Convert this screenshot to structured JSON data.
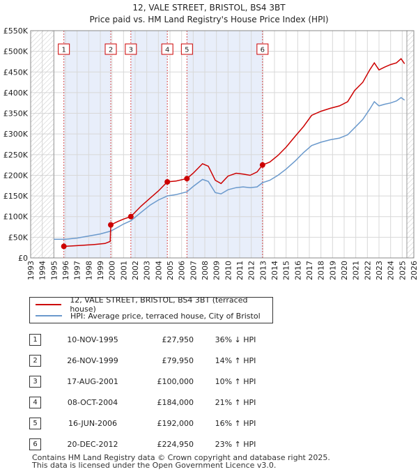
{
  "title_line1": "12, VALE STREET, BRISTOL, BS4 3BT",
  "title_line2": "Price paid vs. HM Land Registry's House Price Index (HPI)",
  "colors": {
    "property": "#cc0000",
    "hpi": "#6a99cc",
    "shade": "#e8eefa",
    "vline": "#cc0000"
  },
  "chart_data": {
    "type": "line",
    "x_range": [
      1993,
      2026
    ],
    "y_range": [
      0,
      550000
    ],
    "y_ticks": [
      0,
      50000,
      100000,
      150000,
      200000,
      250000,
      300000,
      350000,
      400000,
      450000,
      500000,
      550000
    ],
    "y_tick_labels": [
      "£0",
      "£50K",
      "£100K",
      "£150K",
      "£200K",
      "£250K",
      "£300K",
      "£350K",
      "£400K",
      "£450K",
      "£500K",
      "£550K"
    ],
    "x_ticks": [
      1993,
      1994,
      1995,
      1996,
      1997,
      1998,
      1999,
      2000,
      2001,
      2002,
      2003,
      2004,
      2005,
      2006,
      2007,
      2008,
      2009,
      2010,
      2011,
      2012,
      2013,
      2014,
      2015,
      2016,
      2017,
      2018,
      2019,
      2020,
      2021,
      2022,
      2023,
      2024,
      2025,
      2026
    ],
    "data_start": 1995,
    "data_end": 2025.4,
    "shaded_periods": [
      [
        1995.86,
        1999.9
      ],
      [
        2001.63,
        2004.77
      ],
      [
        2006.46,
        2012.97
      ]
    ],
    "series": [
      {
        "name": "12, VALE STREET, BRISTOL, BS4 3BT (terraced house)",
        "points": [
          [
            1995.86,
            27950
          ],
          [
            1996.5,
            28800
          ],
          [
            1997.5,
            30500
          ],
          [
            1998.5,
            32500
          ],
          [
            1999.4,
            35000
          ],
          [
            1999.85,
            40000
          ],
          [
            1999.9,
            79950
          ],
          [
            2000.5,
            88000
          ],
          [
            2001.0,
            94000
          ],
          [
            2001.63,
            100000
          ],
          [
            2002.5,
            125000
          ],
          [
            2003.3,
            145000
          ],
          [
            2004.0,
            162000
          ],
          [
            2004.77,
            184000
          ],
          [
            2005.5,
            186000
          ],
          [
            2006.46,
            192000
          ],
          [
            2007.0,
            205000
          ],
          [
            2007.8,
            228000
          ],
          [
            2008.3,
            222000
          ],
          [
            2008.9,
            188000
          ],
          [
            2009.4,
            180000
          ],
          [
            2010.0,
            198000
          ],
          [
            2010.7,
            205000
          ],
          [
            2011.3,
            203000
          ],
          [
            2011.9,
            200000
          ],
          [
            2012.5,
            208000
          ],
          [
            2012.97,
            224950
          ],
          [
            2013.6,
            232000
          ],
          [
            2014.3,
            248000
          ],
          [
            2015.0,
            268000
          ],
          [
            2015.8,
            295000
          ],
          [
            2016.5,
            318000
          ],
          [
            2017.2,
            345000
          ],
          [
            2018.0,
            355000
          ],
          [
            2018.8,
            362000
          ],
          [
            2019.6,
            368000
          ],
          [
            2020.3,
            378000
          ],
          [
            2020.9,
            405000
          ],
          [
            2021.6,
            425000
          ],
          [
            2022.2,
            455000
          ],
          [
            2022.6,
            472000
          ],
          [
            2023.0,
            455000
          ],
          [
            2023.5,
            462000
          ],
          [
            2024.0,
            468000
          ],
          [
            2024.5,
            472000
          ],
          [
            2024.9,
            482000
          ],
          [
            2025.2,
            470000
          ]
        ]
      },
      {
        "name": "HPI: Average price, terraced house, City of Bristol",
        "points": [
          [
            1995.0,
            45000
          ],
          [
            1996.0,
            45000
          ],
          [
            1997.0,
            48000
          ],
          [
            1998.0,
            53000
          ],
          [
            1999.0,
            58000
          ],
          [
            1999.9,
            65000
          ],
          [
            2000.5,
            74000
          ],
          [
            2001.0,
            82000
          ],
          [
            2001.63,
            90000
          ],
          [
            2002.5,
            110000
          ],
          [
            2003.3,
            128000
          ],
          [
            2004.0,
            140000
          ],
          [
            2004.77,
            150000
          ],
          [
            2005.5,
            153000
          ],
          [
            2006.46,
            160000
          ],
          [
            2007.0,
            173000
          ],
          [
            2007.8,
            190000
          ],
          [
            2008.3,
            185000
          ],
          [
            2008.9,
            158000
          ],
          [
            2009.4,
            155000
          ],
          [
            2010.0,
            165000
          ],
          [
            2010.7,
            170000
          ],
          [
            2011.3,
            172000
          ],
          [
            2011.9,
            170000
          ],
          [
            2012.5,
            172000
          ],
          [
            2012.97,
            182000
          ],
          [
            2013.6,
            188000
          ],
          [
            2014.3,
            200000
          ],
          [
            2015.0,
            215000
          ],
          [
            2015.8,
            235000
          ],
          [
            2016.5,
            255000
          ],
          [
            2017.2,
            272000
          ],
          [
            2018.0,
            280000
          ],
          [
            2018.8,
            286000
          ],
          [
            2019.6,
            290000
          ],
          [
            2020.3,
            298000
          ],
          [
            2020.9,
            315000
          ],
          [
            2021.6,
            335000
          ],
          [
            2022.2,
            360000
          ],
          [
            2022.6,
            378000
          ],
          [
            2023.0,
            368000
          ],
          [
            2023.5,
            372000
          ],
          [
            2024.0,
            375000
          ],
          [
            2024.5,
            380000
          ],
          [
            2024.9,
            388000
          ],
          [
            2025.2,
            382000
          ]
        ]
      }
    ],
    "sale_markers": [
      {
        "label": "1",
        "x": 1995.86,
        "y": 27950
      },
      {
        "label": "2",
        "x": 1999.9,
        "y": 79950
      },
      {
        "label": "3",
        "x": 2001.63,
        "y": 100000
      },
      {
        "label": "4",
        "x": 2004.77,
        "y": 184000
      },
      {
        "label": "5",
        "x": 2006.46,
        "y": 192000
      },
      {
        "label": "6",
        "x": 2012.97,
        "y": 224950
      }
    ]
  },
  "legend": {
    "property": "12, VALE STREET, BRISTOL, BS4 3BT (terraced house)",
    "hpi": "HPI: Average price, terraced house, City of Bristol"
  },
  "sales": [
    {
      "num": "1",
      "date": "10-NOV-1995",
      "price": "£27,950",
      "hpi": "36% ↓ HPI"
    },
    {
      "num": "2",
      "date": "26-NOV-1999",
      "price": "£79,950",
      "hpi": "14% ↑ HPI"
    },
    {
      "num": "3",
      "date": "17-AUG-2001",
      "price": "£100,000",
      "hpi": "10% ↑ HPI"
    },
    {
      "num": "4",
      "date": "08-OCT-2004",
      "price": "£184,000",
      "hpi": "21% ↑ HPI"
    },
    {
      "num": "5",
      "date": "16-JUN-2006",
      "price": "£192,000",
      "hpi": "16% ↑ HPI"
    },
    {
      "num": "6",
      "date": "20-DEC-2012",
      "price": "£224,950",
      "hpi": "23% ↑ HPI"
    }
  ],
  "footer_line1": "Contains HM Land Registry data © Crown copyright and database right 2025.",
  "footer_line2": "This data is licensed under the Open Government Licence v3.0."
}
